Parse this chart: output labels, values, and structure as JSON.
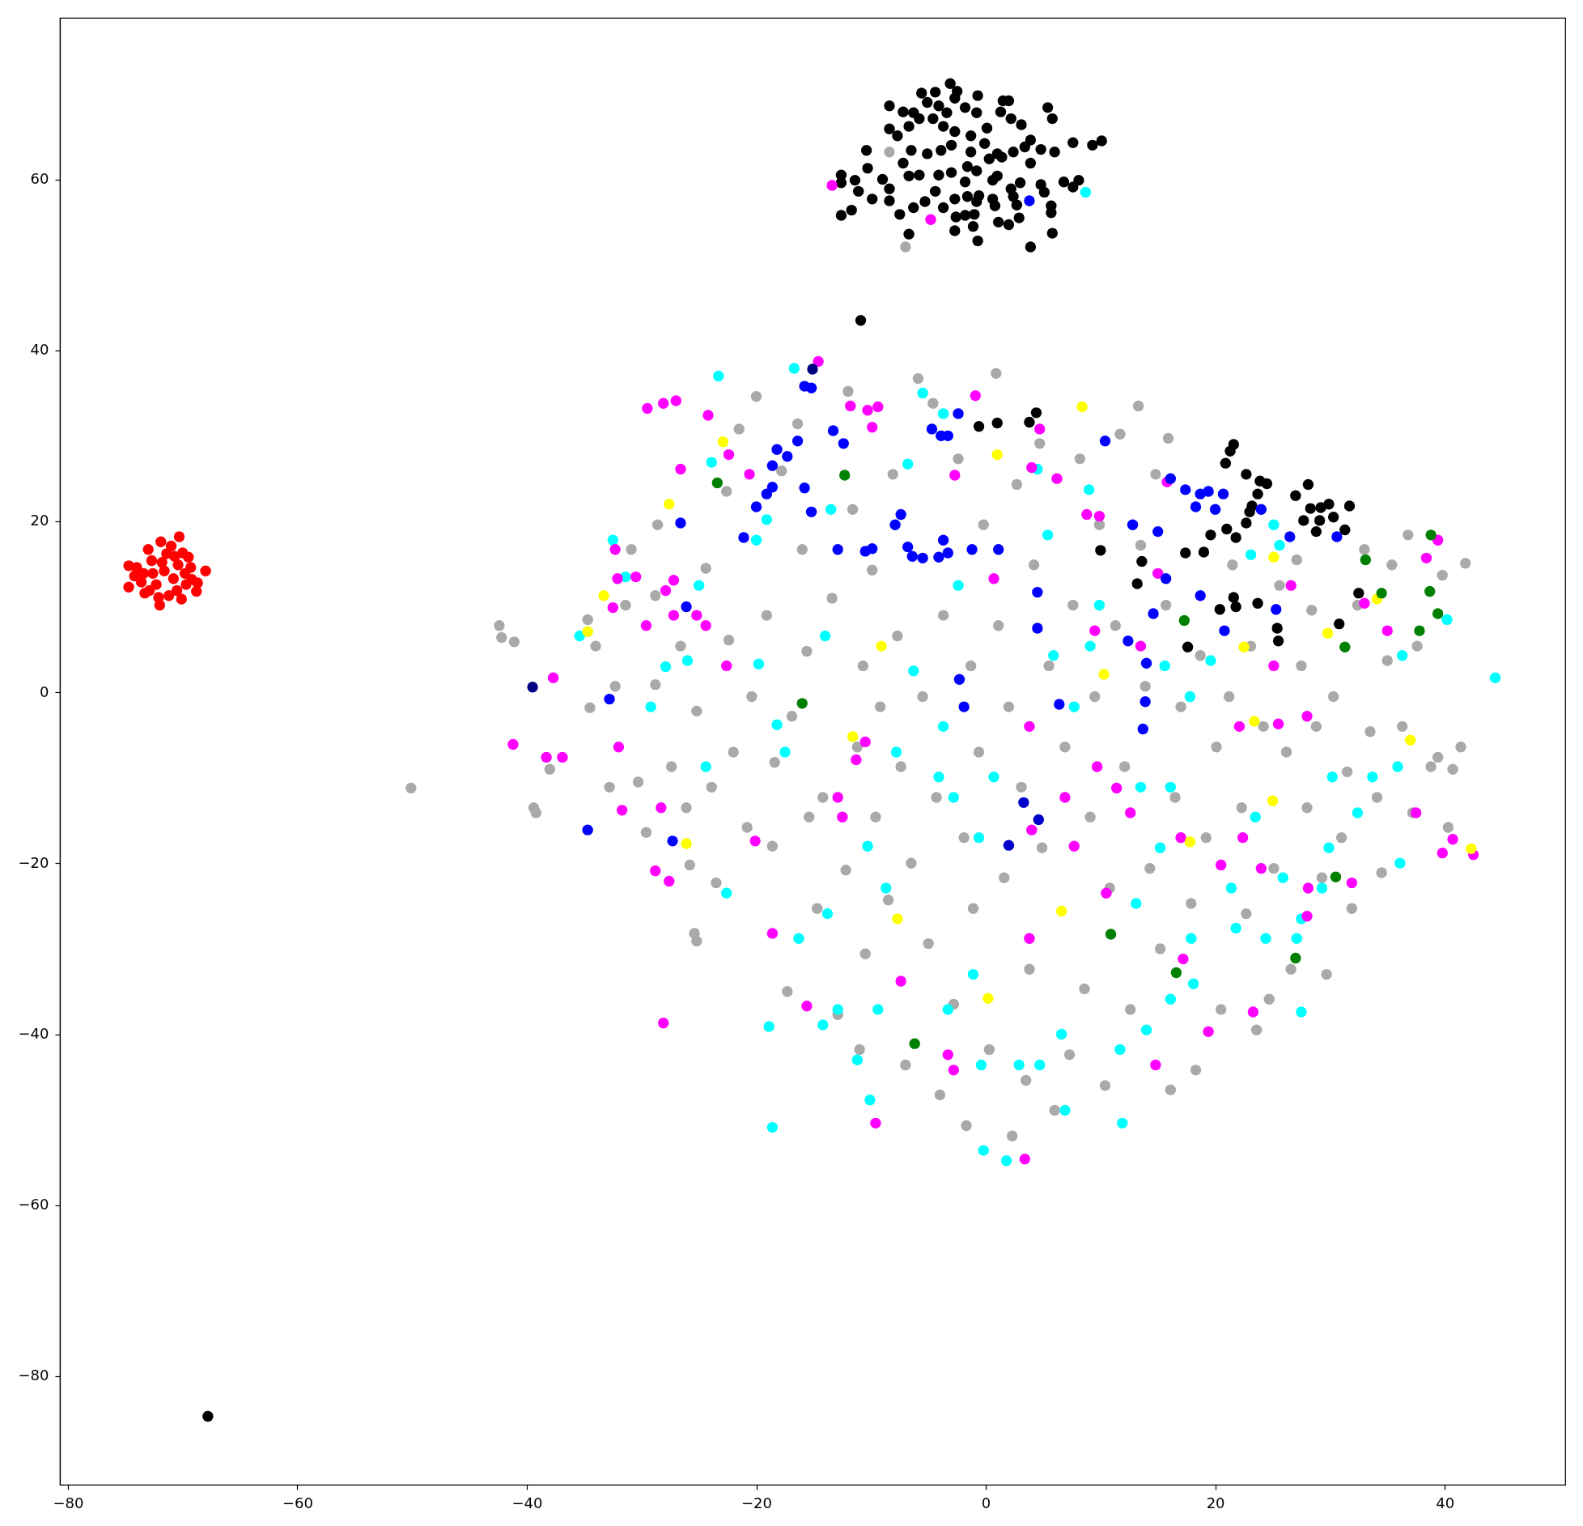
{
  "chart_data": {
    "type": "scatter",
    "xlim": [
      -80.7,
      50.5
    ],
    "ylim": [
      -92.7,
      78.9
    ],
    "xticks": [
      -80,
      -60,
      -40,
      -20,
      0,
      20,
      40
    ],
    "yticks": [
      -80,
      -60,
      -40,
      -20,
      0,
      20,
      40,
      60
    ],
    "marker": "circle",
    "series": [
      {
        "color": "#ff0000",
        "x": [
          -74.7,
          -74.7,
          -74.2,
          -74.0,
          -73.6,
          -73.3,
          -73.0,
          -72.7,
          -72.6,
          -72.3,
          -72.0,
          -71.9,
          -71.6,
          -71.4,
          -71.2,
          -71.0,
          -70.8,
          -70.5,
          -70.4,
          -70.3,
          -70.0,
          -69.8,
          -69.7,
          -69.5,
          -69.3,
          -68.8,
          -68.7,
          -68.0,
          -73.4,
          -72.1,
          -71.8,
          -70.7,
          -70.1,
          -69.2,
          -72.9
        ],
        "values": [
          14.8,
          12.3,
          13.6,
          14.6,
          12.9,
          11.6,
          16.7,
          15.4,
          13.9,
          12.6,
          10.2,
          17.6,
          14.2,
          16.2,
          11.3,
          17.1,
          13.3,
          11.9,
          14.9,
          18.2,
          16.3,
          13.9,
          12.6,
          15.8,
          14.6,
          11.8,
          12.8,
          14.2,
          13.9,
          11.1,
          15.2,
          15.9,
          10.9,
          13.2,
          11.9
        ]
      },
      {
        "color": "#000000",
        "x": [
          -3.1,
          -5.6,
          -4.4,
          -2.5,
          -0.7,
          -2.7,
          -5.1,
          -4.1,
          1.5,
          2.0,
          -8.4,
          -7.2,
          -6.3,
          5.4,
          5.8,
          1.3,
          2.2,
          3.1,
          0.1,
          -0.8,
          -1.8,
          -3.4,
          -4.6,
          -5.8,
          -6.7,
          -8.4,
          -7.7,
          -3.7,
          -2.7,
          -1.3,
          7.6,
          9.3,
          10.1,
          3.9,
          3.4,
          2.4,
          4.8,
          6.0,
          -10.4,
          -6.5,
          -5.1,
          -3.9,
          -3.0,
          -1.3,
          -0.1,
          1.0,
          1.4,
          0.3,
          3.9,
          -7.2,
          -10.3,
          -12.6,
          -11.4,
          -9.0,
          -6.7,
          -5.8,
          -4.1,
          -3.0,
          -1.6,
          -0.8,
          0.6,
          1.0,
          2.2,
          3.0,
          4.8,
          5.1,
          6.8,
          8.1,
          7.6,
          -12.6,
          -11.1,
          -9.9,
          -8.4,
          -8.4,
          -6.3,
          -5.3,
          -4.4,
          -3.7,
          -2.7,
          -1.8,
          -1.6,
          -0.8,
          -0.6,
          0.6,
          0.8,
          2.4,
          2.7,
          5.7,
          5.7,
          -12.6,
          -11.7,
          -7.5,
          -2.6,
          -1.8,
          -1.0,
          -1.1,
          1.1,
          2.0,
          2.9,
          -2.7,
          -6.7,
          -0.7,
          5.8,
          3.9,
          -10.9,
          21.6,
          21.3,
          20.9,
          22.7,
          23.9,
          24.5,
          23.7,
          23.2,
          23.0,
          22.7,
          21.0,
          21.8,
          19.6,
          17.4,
          19.0,
          13.6,
          13.2,
          10.0,
          28.1,
          27.0,
          28.3,
          29.2,
          29.9,
          31.7,
          27.7,
          29.1,
          30.3,
          28.8,
          31.3,
          32.5,
          21.6,
          20.4,
          21.8,
          23.7,
          25.4,
          25.5,
          30.8,
          17.6,
          -0.6,
          1.0,
          3.8,
          4.4,
          -67.8
        ],
        "values": [
          71.2,
          70.1,
          70.2,
          70.3,
          69.8,
          69.5,
          69.0,
          68.6,
          69.2,
          69.2,
          68.6,
          67.9,
          67.8,
          68.4,
          67.1,
          67.9,
          67.1,
          66.4,
          66.0,
          67.8,
          68.4,
          67.8,
          67.1,
          67.1,
          66.2,
          65.9,
          65.1,
          66.2,
          65.6,
          65.1,
          64.3,
          64.0,
          64.5,
          64.6,
          63.8,
          63.2,
          63.5,
          63.2,
          63.4,
          63.4,
          63.0,
          63.4,
          64.0,
          63.2,
          64.2,
          63.0,
          62.6,
          62.4,
          61.9,
          61.9,
          61.3,
          60.5,
          59.9,
          60.0,
          60.4,
          60.5,
          60.5,
          60.8,
          61.5,
          61.0,
          59.9,
          60.4,
          58.9,
          59.6,
          59.4,
          58.5,
          59.7,
          59.9,
          59.1,
          59.6,
          58.6,
          57.7,
          58.9,
          57.5,
          56.7,
          57.4,
          58.6,
          56.7,
          57.7,
          59.7,
          58.0,
          57.4,
          58.1,
          57.7,
          56.9,
          58.0,
          57.0,
          56.9,
          56.1,
          55.8,
          56.4,
          55.9,
          55.6,
          55.8,
          55.9,
          54.5,
          55.0,
          54.7,
          55.5,
          54.0,
          53.6,
          52.8,
          53.7,
          52.1,
          43.5,
          29.0,
          28.2,
          26.8,
          25.5,
          24.7,
          24.4,
          23.2,
          21.8,
          21.1,
          19.8,
          19.1,
          18.1,
          18.4,
          16.3,
          16.4,
          15.3,
          12.7,
          16.6,
          24.3,
          23.0,
          21.5,
          21.6,
          22.0,
          21.8,
          20.1,
          20.1,
          20.5,
          18.8,
          19.0,
          11.6,
          11.1,
          9.7,
          10.0,
          10.4,
          7.5,
          6.0,
          8.0,
          5.3,
          31.1,
          31.5,
          31.6,
          32.7,
          -84.7
        ]
      },
      {
        "color": "#a9a9a9",
        "x": [
          -50.1,
          -42.4,
          -42.2,
          -41.1,
          -39.4,
          -39.2,
          -38.0,
          -34.7,
          -34.5,
          -34.0,
          -32.8,
          -32.3,
          -31.4,
          -30.9,
          -30.3,
          -29.6,
          -28.8,
          -28.6,
          -28.8,
          -27.4,
          -26.6,
          -26.1,
          -25.8,
          -25.4,
          -25.2,
          -25.2,
          -24.4,
          -23.9,
          -23.5,
          -22.6,
          -22.4,
          -22.0,
          -21.5,
          -20.8,
          -20.4,
          -20.0,
          -19.1,
          -18.6,
          -18.4,
          -17.8,
          -17.3,
          -16.9,
          -16.4,
          -16.0,
          -15.6,
          -15.4,
          -14.7,
          -14.2,
          -13.4,
          -12.9,
          -12.0,
          -12.2,
          -11.6,
          -11.2,
          -10.7,
          -11.0,
          -10.5,
          -9.9,
          -9.6,
          -9.2,
          -8.5,
          -8.1,
          -7.7,
          -7.4,
          -7.0,
          -6.5,
          -5.9,
          -5.5,
          -5.0,
          -4.6,
          -4.3,
          -4.0,
          -3.7,
          -2.8,
          -2.4,
          -1.9,
          -1.7,
          -1.3,
          -1.1,
          -0.6,
          -0.2,
          0.3,
          0.9,
          1.1,
          1.6,
          2.0,
          2.3,
          2.7,
          3.1,
          3.5,
          3.8,
          4.2,
          4.7,
          4.9,
          5.5,
          6.0,
          6.9,
          7.3,
          7.6,
          8.2,
          8.6,
          9.1,
          9.5,
          9.9,
          10.4,
          10.8,
          11.3,
          11.7,
          12.1,
          12.6,
          13.3,
          13.5,
          13.9,
          14.3,
          14.8,
          15.2,
          15.7,
          15.9,
          16.1,
          16.5,
          17.0,
          17.9,
          18.3,
          18.7,
          19.2,
          20.1,
          20.5,
          21.2,
          21.5,
          22.3,
          22.7,
          23.1,
          23.6,
          24.2,
          24.7,
          25.1,
          25.6,
          26.2,
          26.6,
          27.1,
          27.5,
          28.0,
          28.4,
          28.8,
          29.3,
          29.7,
          30.3,
          31.0,
          31.5,
          31.9,
          32.4,
          33.0,
          33.5,
          34.1,
          34.5,
          35.0,
          35.4,
          36.3,
          36.8,
          37.2,
          37.6,
          38.8,
          39.4,
          39.8,
          40.7,
          41.4,
          41.8,
          40.3,
          -8.4,
          -7.0
        ],
        "values": [
          -11.2,
          7.8,
          6.4,
          5.9,
          -13.5,
          -14.1,
          -9.0,
          8.5,
          -1.8,
          5.4,
          -11.1,
          0.7,
          10.2,
          16.7,
          -10.5,
          -16.4,
          11.3,
          19.6,
          0.9,
          -8.7,
          5.4,
          -13.5,
          -20.2,
          -28.2,
          -29.1,
          -2.2,
          14.5,
          -11.1,
          -22.3,
          23.5,
          6.1,
          -7.0,
          30.8,
          -15.8,
          -0.5,
          34.6,
          9.0,
          -18.0,
          -8.2,
          25.9,
          -35.0,
          -2.8,
          31.4,
          16.7,
          4.8,
          -14.6,
          -25.3,
          -12.3,
          11.0,
          -37.7,
          35.2,
          -20.8,
          21.4,
          -6.4,
          3.1,
          -41.8,
          -30.6,
          14.3,
          -14.6,
          -1.7,
          -24.3,
          25.5,
          6.6,
          -8.7,
          -43.6,
          -20.0,
          36.7,
          -0.5,
          -29.4,
          33.8,
          -12.3,
          -47.1,
          9.0,
          -36.5,
          27.3,
          -17.0,
          -50.7,
          3.1,
          -25.3,
          -7.0,
          19.6,
          -41.8,
          37.3,
          7.8,
          -21.7,
          -1.7,
          -51.9,
          24.3,
          -11.1,
          -45.4,
          -32.4,
          14.9,
          29.1,
          -18.2,
          3.1,
          -48.9,
          -6.4,
          -42.4,
          10.2,
          27.3,
          -34.7,
          -14.6,
          -0.5,
          19.6,
          -46.0,
          -22.9,
          7.8,
          30.2,
          -8.7,
          -37.1,
          33.5,
          17.2,
          0.7,
          -20.6,
          25.5,
          -30.0,
          10.2,
          29.7,
          -46.5,
          -12.3,
          -1.7,
          -24.7,
          -44.2,
          4.3,
          -17.0,
          -6.4,
          -37.1,
          -0.5,
          14.9,
          -13.5,
          -25.9,
          5.4,
          -39.5,
          -4.0,
          -35.9,
          -20.6,
          12.5,
          -7.0,
          -32.4,
          15.5,
          3.1,
          -13.5,
          9.6,
          -4.0,
          -21.7,
          -33.0,
          -0.5,
          -17.0,
          -9.3,
          -25.3,
          10.2,
          16.7,
          -4.6,
          -12.3,
          -21.1,
          3.7,
          14.9,
          -4.0,
          18.4,
          -14.1,
          5.4,
          -8.7,
          -7.6,
          13.7,
          -9.0,
          -6.4,
          15.1,
          -15.8,
          63.2,
          52.1
        ]
      },
      {
        "color": "#00ffff",
        "x": [
          44.4,
          40.2,
          36.3,
          35.9,
          33.7,
          36.1,
          32.4,
          30.2,
          29.9,
          29.3,
          27.5,
          27.1,
          27.5,
          25.9,
          24.4,
          23.5,
          21.4,
          21.8,
          23.1,
          25.1,
          25.6,
          19.6,
          17.8,
          15.6,
          16.1,
          15.2,
          17.9,
          18.1,
          16.1,
          13.5,
          13.1,
          14.0,
          11.7,
          11.9,
          9.9,
          9.0,
          9.1,
          7.7,
          5.9,
          5.4,
          4.5,
          6.6,
          6.9,
          4.7,
          2.9,
          1.8,
          -0.2,
          -0.4,
          -1.1,
          -3.3,
          -4.1,
          -2.8,
          -3.7,
          -0.6,
          0.7,
          -2.4,
          -3.7,
          -5.5,
          -6.8,
          -6.3,
          -7.8,
          -8.7,
          -10.3,
          -9.4,
          -11.2,
          -13.8,
          -12.9,
          -14.2,
          -16.3,
          -18.9,
          -17.5,
          -18.2,
          -19.8,
          -20.0,
          -19.1,
          -13.5,
          -14.0,
          -16.7,
          -23.3,
          -23.9,
          -25.0,
          -26.0,
          -27.9,
          -29.2,
          -32.5,
          -35.4,
          -31.4,
          -22.6,
          -18.6,
          -24.4,
          -10.1,
          8.7
        ],
        "values": [
          1.7,
          8.5,
          4.3,
          -8.7,
          -9.9,
          -20.0,
          -14.1,
          -9.9,
          -18.2,
          -22.9,
          -26.5,
          -28.8,
          -37.4,
          -21.7,
          -28.8,
          -14.6,
          -22.9,
          -27.6,
          16.1,
          19.6,
          17.2,
          3.7,
          -0.5,
          3.1,
          -11.1,
          -18.2,
          -28.8,
          -34.1,
          -35.9,
          -11.1,
          -24.7,
          -39.5,
          -41.8,
          -50.4,
          10.2,
          23.7,
          5.4,
          -1.7,
          4.3,
          18.4,
          26.1,
          -40.0,
          -48.9,
          -43.6,
          -43.6,
          -54.8,
          -53.6,
          -43.6,
          -33.0,
          -37.1,
          -9.9,
          -12.3,
          -4.0,
          -17.0,
          -9.9,
          12.5,
          32.6,
          35.0,
          26.7,
          2.5,
          -7.0,
          -22.9,
          -18.0,
          -37.1,
          -43.0,
          -25.9,
          -37.1,
          -38.9,
          -28.8,
          -39.1,
          -7.0,
          -3.8,
          3.3,
          17.8,
          20.2,
          21.4,
          6.6,
          37.9,
          37.0,
          26.9,
          12.5,
          3.7,
          3.0,
          -1.7,
          17.8,
          6.6,
          13.5,
          -23.5,
          -50.9,
          -8.7,
          -47.7,
          58.5
        ]
      },
      {
        "color": "#ff00ff",
        "x": [
          -13.4,
          -4.8,
          -14.6,
          -29.5,
          -28.1,
          -27.0,
          -24.2,
          -22.4,
          -20.6,
          -26.6,
          -32.3,
          -32.1,
          -30.5,
          -27.9,
          -27.2,
          -32.5,
          -29.6,
          -27.2,
          -25.2,
          -24.4,
          -22.6,
          -32.0,
          -31.7,
          -28.3,
          -28.8,
          -27.6,
          -28.1,
          -41.2,
          -38.3,
          -36.9,
          -37.7,
          -18.6,
          -20.1,
          -15.6,
          -12.9,
          -12.5,
          -11.8,
          -9.9,
          -10.3,
          -9.4,
          -11.3,
          -10.5,
          -9.6,
          -7.4,
          -2.7,
          -0.9,
          -2.8,
          -3.3,
          0.7,
          3.8,
          4.0,
          3.8,
          3.4,
          4.7,
          4.0,
          6.2,
          8.8,
          9.9,
          9.5,
          9.7,
          7.7,
          6.9,
          11.4,
          13.5,
          12.6,
          15.0,
          15.8,
          17.0,
          14.8,
          19.4,
          17.2,
          20.5,
          24.0,
          23.3,
          22.1,
          25.5,
          25.1,
          26.6,
          28.0,
          28.0,
          28.1,
          31.9,
          33.0,
          35.0,
          37.5,
          38.4,
          39.4,
          40.7,
          39.8,
          22.4,
          10.5,
          42.5
        ],
        "values": [
          59.3,
          55.3,
          38.7,
          33.2,
          33.8,
          34.1,
          32.4,
          27.8,
          25.5,
          26.1,
          16.7,
          13.3,
          13.5,
          11.9,
          13.1,
          9.9,
          7.8,
          9.0,
          9.0,
          7.8,
          3.1,
          -6.4,
          -13.8,
          -13.5,
          -20.9,
          -22.1,
          -38.7,
          -6.1,
          -7.6,
          -7.6,
          1.7,
          -28.2,
          -17.4,
          -36.7,
          -12.3,
          -14.6,
          33.5,
          31.0,
          33.0,
          33.4,
          -7.9,
          -5.8,
          -50.4,
          -33.8,
          25.4,
          34.7,
          -44.2,
          -42.4,
          13.3,
          -4.0,
          -16.1,
          -28.8,
          -54.6,
          30.8,
          26.3,
          25.0,
          20.8,
          20.6,
          7.2,
          -8.7,
          -18.0,
          -12.3,
          -11.2,
          5.4,
          -14.1,
          13.9,
          24.6,
          -17.0,
          -43.6,
          -39.7,
          -31.2,
          -20.2,
          -20.6,
          -37.4,
          -4.0,
          -3.7,
          3.1,
          12.5,
          -2.8,
          -26.2,
          -22.9,
          -22.3,
          10.4,
          7.2,
          -14.1,
          15.7,
          17.8,
          -17.2,
          -18.8,
          -17.0,
          -23.5,
          -19.0
        ]
      },
      {
        "color": "#0000ff",
        "x": [
          3.8,
          -15.8,
          -15.2,
          -13.3,
          -12.4,
          -16.4,
          -17.3,
          -18.2,
          -18.6,
          -19.1,
          -21.1,
          -20.0,
          -18.6,
          -15.8,
          -15.2,
          -12.9,
          -10.5,
          -9.9,
          -7.9,
          -7.4,
          -6.8,
          -6.4,
          -5.5,
          -4.1,
          -3.3,
          -3.7,
          -4.7,
          -3.9,
          -3.3,
          -2.4,
          -1.2,
          1.1,
          -26.6,
          -26.1,
          -32.8,
          -34.7,
          -27.3,
          -1.9,
          -2.3,
          6.4,
          4.5,
          4.5,
          10.4,
          12.8,
          12.4,
          13.9,
          13.7,
          14.0,
          15.0,
          16.1,
          17.4,
          18.7,
          19.4,
          18.3,
          20.0,
          20.7,
          15.7,
          14.6,
          18.7,
          20.8,
          25.3,
          24.0,
          26.5,
          30.6
        ],
        "values": [
          57.5,
          35.8,
          35.6,
          30.6,
          29.1,
          29.4,
          27.6,
          28.4,
          26.5,
          23.2,
          18.1,
          21.7,
          24.0,
          23.9,
          21.1,
          16.7,
          16.5,
          16.8,
          19.6,
          20.8,
          17.0,
          15.9,
          15.7,
          15.8,
          16.3,
          17.8,
          30.8,
          30.0,
          30.0,
          32.6,
          16.7,
          16.7,
          19.8,
          10.0,
          -0.8,
          -16.1,
          -17.4,
          -1.7,
          1.5,
          -1.4,
          7.5,
          11.7,
          29.4,
          19.6,
          6.0,
          -1.1,
          -4.3,
          3.4,
          18.8,
          25.0,
          23.7,
          23.2,
          23.5,
          21.7,
          21.4,
          23.2,
          13.3,
          9.2,
          11.3,
          7.2,
          9.7,
          21.4,
          18.2,
          18.2
        ]
      },
      {
        "color": "#0000cd",
        "x": [
          3.3,
          4.6,
          2.0
        ],
        "values": [
          -12.9,
          -14.9,
          -17.9
        ]
      },
      {
        "color": "#000080",
        "x": [
          -15.1,
          -39.5
        ],
        "values": [
          37.8,
          0.6
        ]
      },
      {
        "color": "#ffff00",
        "x": [
          -22.9,
          -27.6,
          -33.3,
          -34.7,
          -26.1,
          -11.6,
          -9.1,
          -7.7,
          1.0,
          0.2,
          6.6,
          8.4,
          10.3,
          17.8,
          22.5,
          23.4,
          25.1,
          25.0,
          29.8,
          34.1,
          37.0,
          42.3
        ],
        "values": [
          29.3,
          22.0,
          11.3,
          7.1,
          -17.7,
          -5.2,
          5.4,
          -26.5,
          27.8,
          -35.8,
          -25.6,
          33.4,
          2.1,
          -17.5,
          5.3,
          -3.4,
          15.8,
          -12.7,
          6.9,
          10.9,
          -5.6,
          -18.3
        ]
      },
      {
        "color": "#008000",
        "x": [
          -23.4,
          -12.3,
          -16.0,
          -6.2,
          10.9,
          16.6,
          27.0,
          30.5,
          17.3,
          31.3,
          33.1,
          34.5,
          38.7,
          38.8,
          39.4,
          37.8
        ],
        "values": [
          24.5,
          25.4,
          -1.3,
          -41.1,
          -28.3,
          -32.8,
          -31.1,
          -21.6,
          8.4,
          5.3,
          15.5,
          11.6,
          11.8,
          18.4,
          9.2,
          7.2
        ]
      }
    ]
  }
}
